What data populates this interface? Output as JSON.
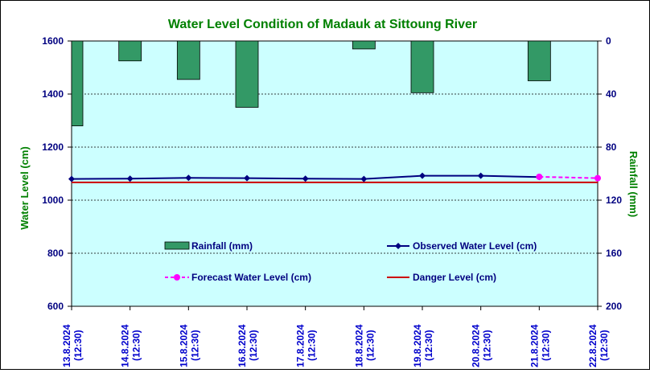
{
  "chart_data": {
    "type": "bar+line",
    "title": "Water Level Condition of Madauk at Sittoung River",
    "ylabel": "Water Level (cm)",
    "y2label": "Rainfall (mm)",
    "ylim": [
      600,
      1600
    ],
    "yticks": [
      600,
      800,
      1000,
      1200,
      1400,
      1600
    ],
    "y2lim": [
      0,
      200
    ],
    "y2ticks": [
      0,
      40,
      80,
      120,
      160,
      200
    ],
    "y2_inverted": true,
    "grid": "horizontal-dotted",
    "categories": [
      "13.8.2024 (12:30)",
      "14.8.2024 (12:30)",
      "15.8.2024 (12:30)",
      "16.8.2024 (12:30)",
      "17.8.2024 (12:30)",
      "18.8.2024 (12:30)",
      "19.8.2024 (12:30)",
      "20.8.2024 (12:30)",
      "21.8.2024 (12:30)",
      "22.8.2024 (12:30)"
    ],
    "rainfall": {
      "name": "Rainfall (mm)",
      "color": "#339966",
      "values": [
        64,
        15,
        29,
        50,
        0,
        6,
        39,
        0,
        30,
        null
      ]
    },
    "observed": {
      "name": "Observed Water Level (cm)",
      "color": "#000080",
      "values": [
        1080,
        1081,
        1084,
        1083,
        1081,
        1080,
        1092,
        1092,
        1087,
        null
      ]
    },
    "forecast": {
      "name": "Forecast Water Level (cm)",
      "color": "#ff00ff",
      "values": [
        null,
        null,
        null,
        null,
        null,
        null,
        null,
        null,
        1088,
        1083
      ]
    },
    "danger": {
      "name": "Danger Level (cm)",
      "color": "#cc0000",
      "value": 1067
    },
    "colors": {
      "plot_background": "#ccffff",
      "title": "#008000",
      "axis_labels": "#008000",
      "tick_labels": "#000080",
      "date_labels": "#0000cc"
    }
  }
}
